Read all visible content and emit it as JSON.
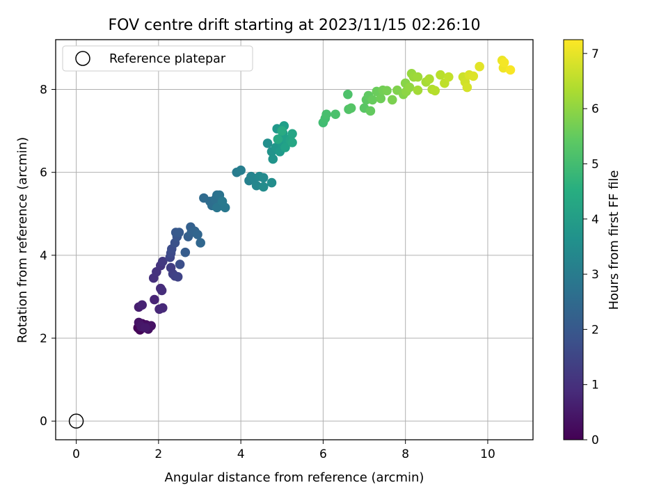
{
  "chart_data": {
    "type": "scatter",
    "title": "FOV centre drift starting at 2023/11/15 02:26:10",
    "xlabel": "Angular distance from reference (arcmin)",
    "ylabel": "Rotation from reference (arcmin)",
    "xlim": [
      -0.5,
      11.1
    ],
    "ylim": [
      -0.45,
      9.2
    ],
    "xticks": [
      0,
      2,
      4,
      6,
      8,
      10
    ],
    "yticks": [
      0,
      2,
      4,
      6,
      8
    ],
    "grid": true,
    "legend": {
      "placement": "top-left",
      "entries": [
        "Reference platepar"
      ]
    },
    "reference_point": {
      "label": "Reference platepar",
      "x": 0,
      "y": 0
    },
    "colorbar": {
      "label": "Hours from first FF file",
      "range": [
        0,
        7.25
      ],
      "ticks": [
        0,
        1,
        2,
        3,
        4,
        5,
        6,
        7
      ],
      "colormap": "viridis"
    },
    "points": [
      {
        "x": 1.5,
        "y": 2.25,
        "c": 0.05
      },
      {
        "x": 1.55,
        "y": 2.2,
        "c": 0.1
      },
      {
        "x": 1.6,
        "y": 2.35,
        "c": 0.15
      },
      {
        "x": 1.65,
        "y": 2.3,
        "c": 0.2
      },
      {
        "x": 1.7,
        "y": 2.32,
        "c": 0.25
      },
      {
        "x": 1.75,
        "y": 2.22,
        "c": 0.3
      },
      {
        "x": 1.82,
        "y": 2.3,
        "c": 0.35
      },
      {
        "x": 1.52,
        "y": 2.38,
        "c": 0.4
      },
      {
        "x": 1.58,
        "y": 2.28,
        "c": 0.45
      },
      {
        "x": 1.68,
        "y": 2.25,
        "c": 0.5
      },
      {
        "x": 1.52,
        "y": 2.75,
        "c": 0.6
      },
      {
        "x": 1.6,
        "y": 2.8,
        "c": 0.7
      },
      {
        "x": 1.9,
        "y": 2.93,
        "c": 0.75
      },
      {
        "x": 2.02,
        "y": 2.7,
        "c": 0.8
      },
      {
        "x": 2.1,
        "y": 2.73,
        "c": 0.85
      },
      {
        "x": 2.05,
        "y": 3.2,
        "c": 0.9
      },
      {
        "x": 2.08,
        "y": 3.15,
        "c": 0.95
      },
      {
        "x": 1.88,
        "y": 3.45,
        "c": 1.0
      },
      {
        "x": 1.95,
        "y": 3.6,
        "c": 1.05
      },
      {
        "x": 2.05,
        "y": 3.75,
        "c": 1.1
      },
      {
        "x": 2.1,
        "y": 3.85,
        "c": 1.2
      },
      {
        "x": 2.3,
        "y": 3.7,
        "c": 1.3
      },
      {
        "x": 2.35,
        "y": 3.55,
        "c": 1.35
      },
      {
        "x": 2.4,
        "y": 3.5,
        "c": 1.4
      },
      {
        "x": 2.47,
        "y": 3.48,
        "c": 1.45
      },
      {
        "x": 2.28,
        "y": 3.95,
        "c": 1.5
      },
      {
        "x": 2.3,
        "y": 4.05,
        "c": 1.6
      },
      {
        "x": 2.32,
        "y": 4.15,
        "c": 1.7
      },
      {
        "x": 2.52,
        "y": 3.78,
        "c": 1.75
      },
      {
        "x": 2.4,
        "y": 4.3,
        "c": 1.8
      },
      {
        "x": 2.45,
        "y": 4.45,
        "c": 1.9
      },
      {
        "x": 2.42,
        "y": 4.55,
        "c": 2.0
      },
      {
        "x": 2.5,
        "y": 4.55,
        "c": 2.05
      },
      {
        "x": 2.65,
        "y": 4.07,
        "c": 2.1
      },
      {
        "x": 2.72,
        "y": 4.45,
        "c": 2.15
      },
      {
        "x": 2.78,
        "y": 4.68,
        "c": 2.2
      },
      {
        "x": 2.8,
        "y": 4.55,
        "c": 2.25
      },
      {
        "x": 2.88,
        "y": 4.58,
        "c": 2.3
      },
      {
        "x": 2.95,
        "y": 4.5,
        "c": 2.35
      },
      {
        "x": 3.02,
        "y": 4.3,
        "c": 2.4
      },
      {
        "x": 3.1,
        "y": 5.38,
        "c": 2.5
      },
      {
        "x": 3.25,
        "y": 5.3,
        "c": 2.55
      },
      {
        "x": 3.3,
        "y": 5.2,
        "c": 2.6
      },
      {
        "x": 3.38,
        "y": 5.35,
        "c": 2.65
      },
      {
        "x": 3.42,
        "y": 5.45,
        "c": 2.7
      },
      {
        "x": 3.48,
        "y": 5.45,
        "c": 2.75
      },
      {
        "x": 3.5,
        "y": 5.2,
        "c": 2.8
      },
      {
        "x": 3.42,
        "y": 5.15,
        "c": 2.85
      },
      {
        "x": 3.62,
        "y": 5.15,
        "c": 2.9
      },
      {
        "x": 3.55,
        "y": 5.3,
        "c": 2.95
      },
      {
        "x": 3.9,
        "y": 6.0,
        "c": 3.05
      },
      {
        "x": 4.0,
        "y": 6.05,
        "c": 3.1
      },
      {
        "x": 4.2,
        "y": 5.8,
        "c": 3.2
      },
      {
        "x": 4.25,
        "y": 5.9,
        "c": 3.25
      },
      {
        "x": 4.32,
        "y": 5.85,
        "c": 3.3
      },
      {
        "x": 4.38,
        "y": 5.68,
        "c": 3.35
      },
      {
        "x": 4.45,
        "y": 5.9,
        "c": 3.4
      },
      {
        "x": 4.55,
        "y": 5.87,
        "c": 3.45
      },
      {
        "x": 4.55,
        "y": 5.65,
        "c": 3.5
      },
      {
        "x": 4.75,
        "y": 5.75,
        "c": 3.55
      },
      {
        "x": 4.65,
        "y": 6.7,
        "c": 3.6
      },
      {
        "x": 4.75,
        "y": 6.5,
        "c": 3.7
      },
      {
        "x": 4.78,
        "y": 6.32,
        "c": 3.75
      },
      {
        "x": 4.85,
        "y": 6.6,
        "c": 3.8
      },
      {
        "x": 4.88,
        "y": 7.05,
        "c": 3.85
      },
      {
        "x": 4.95,
        "y": 6.5,
        "c": 3.9
      },
      {
        "x": 5.0,
        "y": 6.7,
        "c": 3.95
      },
      {
        "x": 5.02,
        "y": 6.95,
        "c": 4.0
      },
      {
        "x": 5.05,
        "y": 7.12,
        "c": 4.05
      },
      {
        "x": 5.1,
        "y": 6.8,
        "c": 4.1
      },
      {
        "x": 5.08,
        "y": 6.6,
        "c": 4.15
      },
      {
        "x": 5.2,
        "y": 6.78,
        "c": 4.2
      },
      {
        "x": 5.25,
        "y": 6.93,
        "c": 4.25
      },
      {
        "x": 5.25,
        "y": 6.72,
        "c": 4.3
      },
      {
        "x": 4.9,
        "y": 6.8,
        "c": 4.35
      },
      {
        "x": 5.0,
        "y": 7.0,
        "c": 4.4
      },
      {
        "x": 6.0,
        "y": 7.2,
        "c": 5.0
      },
      {
        "x": 6.05,
        "y": 7.3,
        "c": 5.05
      },
      {
        "x": 6.08,
        "y": 7.4,
        "c": 5.1
      },
      {
        "x": 6.3,
        "y": 7.4,
        "c": 5.15
      },
      {
        "x": 6.6,
        "y": 7.88,
        "c": 5.2
      },
      {
        "x": 6.62,
        "y": 7.52,
        "c": 5.25
      },
      {
        "x": 6.68,
        "y": 7.55,
        "c": 5.3
      },
      {
        "x": 7.0,
        "y": 7.55,
        "c": 5.35
      },
      {
        "x": 7.05,
        "y": 7.75,
        "c": 5.4
      },
      {
        "x": 7.1,
        "y": 7.85,
        "c": 5.45
      },
      {
        "x": 7.15,
        "y": 7.48,
        "c": 5.5
      },
      {
        "x": 7.2,
        "y": 7.75,
        "c": 5.55
      },
      {
        "x": 7.3,
        "y": 7.95,
        "c": 5.6
      },
      {
        "x": 7.4,
        "y": 7.78,
        "c": 5.65
      },
      {
        "x": 7.45,
        "y": 7.98,
        "c": 5.7
      },
      {
        "x": 7.55,
        "y": 7.97,
        "c": 5.75
      },
      {
        "x": 7.68,
        "y": 7.75,
        "c": 5.8
      },
      {
        "x": 7.8,
        "y": 7.98,
        "c": 5.85
      },
      {
        "x": 7.95,
        "y": 7.88,
        "c": 5.9
      },
      {
        "x": 8.0,
        "y": 8.15,
        "c": 5.95
      },
      {
        "x": 8.02,
        "y": 7.95,
        "c": 6.0
      },
      {
        "x": 8.1,
        "y": 8.05,
        "c": 6.05
      },
      {
        "x": 8.15,
        "y": 8.38,
        "c": 6.1
      },
      {
        "x": 8.2,
        "y": 8.3,
        "c": 6.15
      },
      {
        "x": 8.3,
        "y": 8.3,
        "c": 6.2
      },
      {
        "x": 8.3,
        "y": 7.98,
        "c": 6.25
      },
      {
        "x": 8.5,
        "y": 8.18,
        "c": 6.3
      },
      {
        "x": 8.58,
        "y": 8.25,
        "c": 6.35
      },
      {
        "x": 8.65,
        "y": 8.0,
        "c": 6.4
      },
      {
        "x": 8.72,
        "y": 7.97,
        "c": 6.45
      },
      {
        "x": 8.85,
        "y": 8.35,
        "c": 6.5
      },
      {
        "x": 8.95,
        "y": 8.15,
        "c": 6.55
      },
      {
        "x": 9.05,
        "y": 8.3,
        "c": 6.6
      },
      {
        "x": 9.4,
        "y": 8.3,
        "c": 6.7
      },
      {
        "x": 9.45,
        "y": 8.18,
        "c": 6.75
      },
      {
        "x": 9.5,
        "y": 8.05,
        "c": 6.8
      },
      {
        "x": 9.55,
        "y": 8.35,
        "c": 6.85
      },
      {
        "x": 9.65,
        "y": 8.32,
        "c": 6.9
      },
      {
        "x": 9.8,
        "y": 8.55,
        "c": 6.95
      },
      {
        "x": 10.35,
        "y": 8.7,
        "c": 7.05
      },
      {
        "x": 10.38,
        "y": 8.52,
        "c": 7.1
      },
      {
        "x": 10.4,
        "y": 8.65,
        "c": 7.15
      },
      {
        "x": 10.55,
        "y": 8.47,
        "c": 7.2
      }
    ]
  }
}
